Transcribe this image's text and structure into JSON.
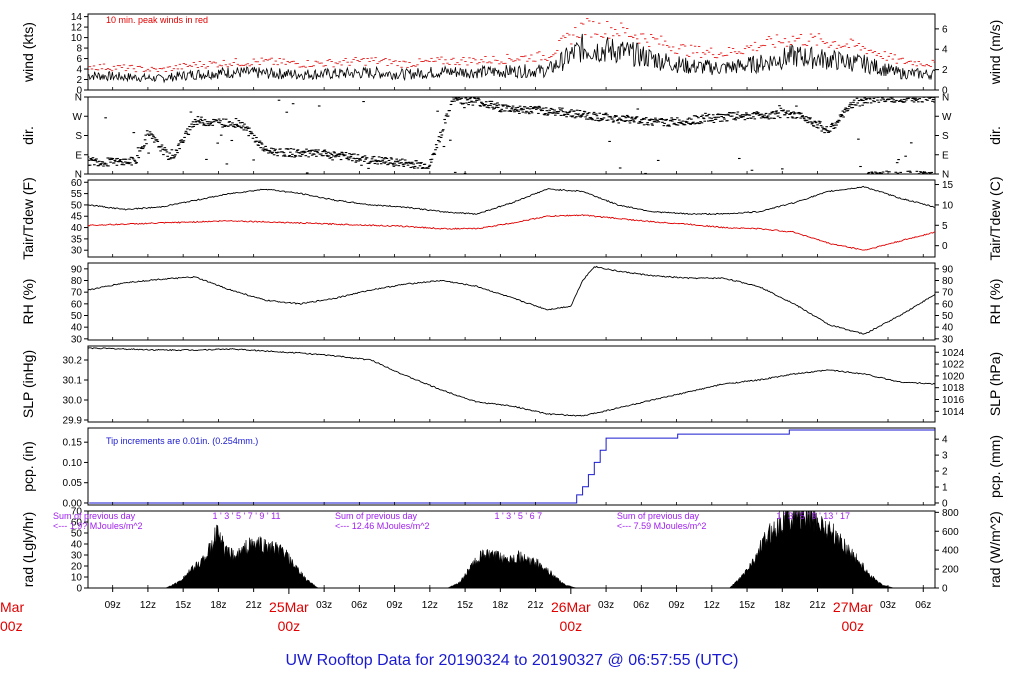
{
  "title": "UW Rooftop Data for 20190324  to  20190327 @ 06:57:55  (UTC)",
  "colors": {
    "wind": "#000000",
    "gust": "#e00000",
    "tair": "#000000",
    "tdew": "#e00000",
    "pcp": "#1a1ad0",
    "note_red": "#e00000",
    "note_blue": "#1a1ad0",
    "note_purple": "#a020f0",
    "day": "#e00000",
    "title": "#1a1ad0"
  },
  "time_axis": {
    "ticks": [
      "09z",
      "12z",
      "15z",
      "18z",
      "21z",
      "03z",
      "06z",
      "09z",
      "12z",
      "15z",
      "18z",
      "21z",
      "03z",
      "06z",
      "09z",
      "12z",
      "15z",
      "18z",
      "21z",
      "03z",
      "06z"
    ],
    "tick_hours": [
      9,
      12,
      15,
      18,
      21,
      27,
      30,
      33,
      36,
      39,
      42,
      45,
      51,
      54,
      57,
      60,
      63,
      66,
      69,
      75,
      78
    ],
    "days": [
      {
        "month": "25Mar",
        "z": "00z",
        "hour": 24
      },
      {
        "month": "26Mar",
        "z": "00z",
        "hour": 48
      },
      {
        "month": "27Mar",
        "z": "00z",
        "hour": 72
      }
    ],
    "partial_day": {
      "month": "Mar",
      "z": "00z"
    },
    "range_hours": [
      6.9,
      79.0
    ]
  },
  "chart_data": [
    {
      "id": "wind",
      "type": "line",
      "ylabel": "wind (kts)",
      "ylabel_right": "wind (m/s)",
      "yticks": [
        0,
        2,
        4,
        6,
        8,
        10,
        12,
        14
      ],
      "yticks_right": [
        0,
        2,
        4,
        6
      ],
      "ylim": [
        0,
        14.5
      ],
      "annotation": "10 min. peak winds in red",
      "series": [
        {
          "x": [
            7,
            10,
            13,
            16,
            19,
            22,
            25,
            28,
            31,
            34,
            37,
            40,
            43,
            46,
            49,
            52,
            55,
            58,
            61,
            64,
            67,
            70,
            73,
            76,
            79
          ],
          "values": [
            2.8,
            2.5,
            2.2,
            3.0,
            3.4,
            3.2,
            3.0,
            3.1,
            3.3,
            3.0,
            3.5,
            3.4,
            3.6,
            3.7,
            8.0,
            7.5,
            6.0,
            4.5,
            4.2,
            5.0,
            6.5,
            5.8,
            5.0,
            3.2,
            3.0
          ]
        },
        {
          "x": [
            7,
            10,
            13,
            16,
            19,
            22,
            25,
            28,
            31,
            34,
            37,
            40,
            43,
            46,
            49,
            52,
            55,
            58,
            61,
            64,
            67,
            70,
            73,
            76,
            79
          ],
          "values": [
            4.5,
            4.2,
            3.8,
            4.8,
            5.2,
            5.4,
            5.0,
            5.2,
            5.6,
            5.0,
            5.5,
            5.6,
            6.0,
            6.5,
            12.0,
            11.5,
            9.5,
            7.5,
            7.0,
            8.5,
            9.8,
            9.2,
            8.0,
            5.5,
            5.0
          ]
        }
      ]
    },
    {
      "id": "dir",
      "type": "scatter",
      "ylabel": "dir.",
      "ylabel_right": "dir.",
      "yticks": [
        "N",
        "E",
        "S",
        "W",
        "N"
      ],
      "ylim": [
        0,
        360
      ],
      "series": [
        {
          "x": [
            7,
            9,
            11,
            12,
            14,
            16,
            18,
            20,
            22,
            24,
            26,
            28,
            30,
            32,
            34,
            36,
            38,
            40,
            42,
            44,
            46,
            48,
            50,
            52,
            54,
            56,
            58,
            60,
            62,
            64,
            66,
            68,
            70,
            72,
            74,
            76,
            78
          ],
          "values": [
            60,
            55,
            60,
            190,
            70,
            250,
            240,
            235,
            110,
            100,
            95,
            90,
            70,
            60,
            50,
            40,
            350,
            340,
            310,
            300,
            295,
            285,
            270,
            260,
            250,
            240,
            250,
            260,
            270,
            275,
            280,
            265,
            200,
            330,
            355,
            355,
            355
          ]
        }
      ]
    },
    {
      "id": "temp",
      "type": "line",
      "ylabel": "Tair/Tdew (F)",
      "ylabel_right": "Tair/Tdew (C)",
      "yticks": [
        30,
        35,
        40,
        45,
        50,
        55,
        60
      ],
      "yticks_right": [
        0,
        5,
        10,
        15
      ],
      "ylim": [
        27,
        61
      ],
      "series": [
        {
          "x": [
            7,
            10,
            13,
            16,
            19,
            22,
            25,
            28,
            31,
            34,
            37,
            40,
            43,
            46,
            49,
            52,
            55,
            58,
            61,
            64,
            67,
            70,
            73,
            76,
            79
          ],
          "values": [
            50,
            48,
            49,
            52,
            55,
            57,
            55,
            52,
            50,
            49,
            47,
            46,
            51,
            57,
            56,
            50,
            47,
            46,
            46,
            47,
            51,
            56,
            58,
            53,
            49
          ]
        },
        {
          "x": [
            7,
            10,
            13,
            16,
            19,
            22,
            25,
            28,
            31,
            34,
            37,
            40,
            43,
            46,
            49,
            52,
            55,
            58,
            61,
            64,
            67,
            70,
            73,
            76,
            79
          ],
          "values": [
            41,
            41.5,
            42,
            42.5,
            43,
            42.5,
            42,
            41.5,
            41,
            40.5,
            39.5,
            39.5,
            42,
            45,
            45.5,
            44,
            42.5,
            41.5,
            40,
            39.5,
            38,
            33,
            30,
            34,
            38
          ]
        }
      ]
    },
    {
      "id": "rh",
      "type": "line",
      "ylabel": "RH (%)",
      "ylabel_right": "RH (%)",
      "yticks": [
        30,
        40,
        50,
        60,
        70,
        80,
        90
      ],
      "ylim": [
        29,
        95
      ],
      "series": [
        {
          "x": [
            7,
            10,
            13,
            16,
            19,
            22,
            25,
            28,
            31,
            34,
            37,
            40,
            43,
            46,
            48,
            49,
            50,
            52,
            55,
            58,
            61,
            64,
            67,
            70,
            73,
            76,
            79
          ],
          "values": [
            72,
            78,
            81,
            83,
            72,
            63,
            60,
            65,
            72,
            77,
            80,
            75,
            65,
            55,
            58,
            80,
            92,
            88,
            84,
            82,
            82,
            75,
            60,
            42,
            34,
            50,
            68
          ]
        }
      ]
    },
    {
      "id": "slp",
      "type": "line",
      "ylabel": "SLP (inHg)",
      "ylabel_right": "SLP (hPa)",
      "yticks": [
        29.9,
        30.0,
        30.1,
        30.2
      ],
      "yticks_right": [
        1014,
        1016,
        1018,
        1020,
        1022,
        1024
      ],
      "ylim": [
        29.89,
        30.27
      ],
      "series": [
        {
          "x": [
            7,
            10,
            13,
            16,
            19,
            22,
            25,
            28,
            31,
            34,
            37,
            40,
            43,
            46,
            49,
            52,
            55,
            58,
            61,
            64,
            67,
            70,
            73,
            76,
            79
          ],
          "values": [
            30.26,
            30.255,
            30.25,
            30.25,
            30.255,
            30.245,
            30.235,
            30.22,
            30.2,
            30.12,
            30.05,
            29.99,
            29.97,
            29.93,
            29.92,
            29.96,
            30.0,
            30.04,
            30.08,
            30.1,
            30.13,
            30.15,
            30.13,
            30.09,
            30.08
          ]
        }
      ]
    },
    {
      "id": "pcp",
      "type": "line",
      "ylabel": "pcp. (in)",
      "ylabel_right": "pcp. (mm)",
      "yticks": [
        0.0,
        0.05,
        0.1,
        0.15
      ],
      "yticks_right": [
        0,
        1,
        2,
        3,
        4
      ],
      "ylim": [
        -0.005,
        0.185
      ],
      "annotation": "Tip increments are 0.01in. (0.254mm.)",
      "series": [
        {
          "x": [
            7,
            48.0,
            48.5,
            49.0,
            49.5,
            50.0,
            50.5,
            51.0,
            51.5,
            57.0,
            57.1,
            66.5,
            66.6,
            79
          ],
          "values": [
            0,
            0,
            0.02,
            0.04,
            0.07,
            0.1,
            0.13,
            0.16,
            0.16,
            0.16,
            0.17,
            0.17,
            0.18,
            0.18
          ]
        }
      ]
    },
    {
      "id": "rad",
      "type": "area",
      "ylabel": "rad (Lgly/hr)",
      "ylabel_right": "rad (W/m^2)",
      "yticks": [
        0,
        10,
        20,
        30,
        40,
        50,
        60,
        70
      ],
      "yticks_right": [
        0,
        200,
        400,
        600,
        800
      ],
      "ylim": [
        0,
        70
      ],
      "series": [
        {
          "x": [
            13.5,
            14.5,
            15.5,
            16.5,
            17.5,
            18.0,
            18.5,
            19.5,
            20.5,
            21.5,
            22.5,
            23.5,
            24.5,
            25.5,
            26.5,
            37.5,
            38.5,
            39.5,
            40.5,
            41.5,
            42.5,
            43.5,
            44.5,
            45.5,
            46.5,
            47.5,
            48.5,
            61.5,
            62.5,
            63.5,
            64.5,
            65.5,
            66.5,
            67.5,
            68.5,
            69.5,
            70.5,
            71.5,
            72.5,
            73.5,
            74.5,
            75.5
          ],
          "values": [
            0,
            5,
            15,
            25,
            40,
            60,
            35,
            30,
            40,
            42,
            38,
            35,
            20,
            8,
            0,
            0,
            5,
            20,
            32,
            30,
            28,
            30,
            25,
            22,
            12,
            3,
            0,
            0,
            10,
            25,
            45,
            60,
            68,
            70,
            68,
            60,
            50,
            38,
            25,
            12,
            3,
            0
          ]
        }
      ],
      "annotations": [
        {
          "text": "Sum of previous day",
          "x": 7.5
        },
        {
          "text": "<--- 1.9? MJoules/m^2",
          "x": 7.5
        },
        {
          "text": "Sum of previous day",
          "x": 31.5
        },
        {
          "text": "<--- 12.46 MJoules/m^2",
          "x": 31.5
        },
        {
          "text": "Sum of previous day",
          "x": 55.5
        },
        {
          "text": "<--- 7.59 MJoules/m^2",
          "x": 55.5
        }
      ],
      "hour_markers": [
        {
          "label": "1 ' 3 ' 5 ' 7 ' 9 ' 11",
          "x": 17.5
        },
        {
          "label": "1 ' 3 ' 5 ' 6 7",
          "x": 41.5
        },
        {
          "label": "1 ' 3 ' 5 ' 9 ' 13 ' 17",
          "x": 65.5
        }
      ]
    }
  ]
}
